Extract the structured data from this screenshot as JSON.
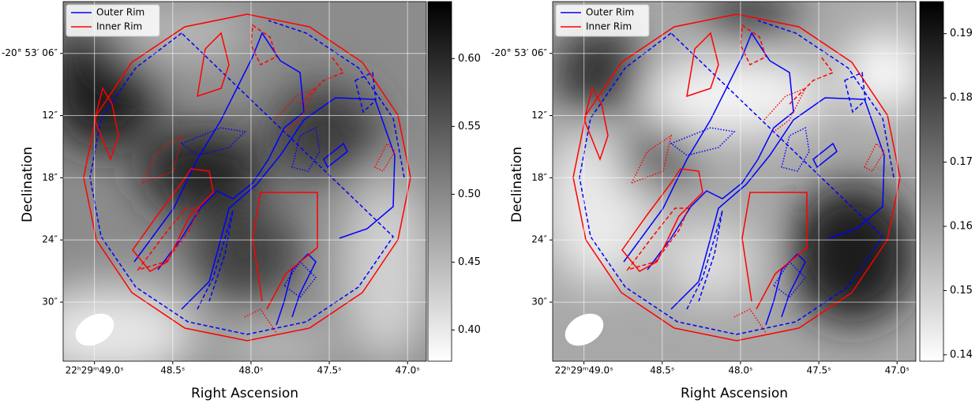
{
  "chart_data": [
    {
      "type": "image",
      "xlabel": "Right Ascension",
      "ylabel": "Declination",
      "xlim": [
        49.2,
        46.88
      ],
      "ylim": [
        35.7,
        1.0
      ],
      "xticks": [
        {
          "value": 49.0,
          "label": "22ʰ29ᵐ49.0ˢ"
        },
        {
          "value": 48.5,
          "label": "48.5ˢ"
        },
        {
          "value": 48.0,
          "label": "48.0ˢ"
        },
        {
          "value": 47.5,
          "label": "47.5ˢ"
        },
        {
          "value": 47.0,
          "label": "47.0ˢ"
        }
      ],
      "yticks": [
        {
          "value": 6,
          "label": "-20° 53′ 06″"
        },
        {
          "value": 12,
          "label": "12″"
        },
        {
          "value": 18,
          "label": "18″"
        },
        {
          "value": 24,
          "label": "24″"
        },
        {
          "value": 30,
          "label": "30″"
        }
      ],
      "colormap": "gray_r",
      "clim": [
        0.377,
        0.642
      ],
      "cticks": [
        {
          "value": 0.4,
          "label": "0.40"
        },
        0.45,
        {
          "value": 0.5,
          "label": "0.50"
        },
        0.55,
        {
          "value": 0.6,
          "label": "0.60"
        }
      ],
      "legend": "upper left",
      "grid": true,
      "series": [
        {
          "name": "Outer Rim",
          "color": "#0000ff"
        },
        {
          "name": "Inner Rim",
          "color": "#ff0000"
        }
      ]
    },
    {
      "type": "image",
      "xlabel": "Right Ascension",
      "ylabel": "Declination",
      "xlim": [
        49.2,
        46.88
      ],
      "ylim": [
        35.7,
        1.0
      ],
      "xticks": [
        {
          "value": 49.0,
          "label": "22ʰ29ᵐ49.0ˢ"
        },
        {
          "value": 48.5,
          "label": "48.5ˢ"
        },
        {
          "value": 48.0,
          "label": "48.0ˢ"
        },
        {
          "value": 47.5,
          "label": "47.5ˢ"
        },
        {
          "value": 47.0,
          "label": "47.0ˢ"
        }
      ],
      "yticks": [
        {
          "value": 6,
          "label": "-20° 53′ 06″"
        },
        {
          "value": 12,
          "label": "12″"
        },
        {
          "value": 18,
          "label": "18″"
        },
        {
          "value": 24,
          "label": "24″"
        },
        {
          "value": 30,
          "label": "30″"
        }
      ],
      "colormap": "gray_r",
      "clim": [
        0.139,
        0.195
      ],
      "cticks": [
        0.14,
        0.15,
        0.16,
        0.17,
        0.18,
        0.19
      ],
      "legend": "upper left",
      "grid": true,
      "series": [
        {
          "name": "Outer Rim",
          "color": "#0000ff"
        },
        {
          "name": "Inner Rim",
          "color": "#ff0000"
        }
      ]
    }
  ]
}
